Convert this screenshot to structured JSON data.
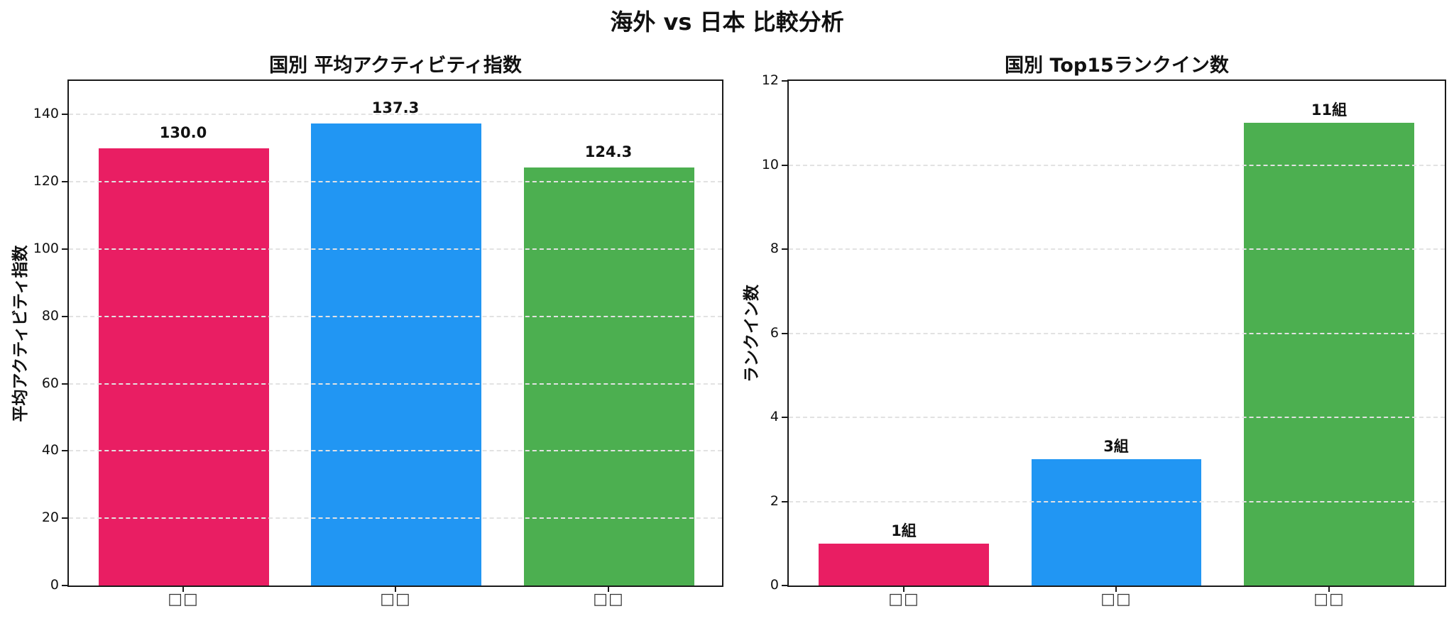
{
  "figure": {
    "suptitle": "海外 vs 日本 比較分析"
  },
  "left": {
    "title": "国別 平均アクティビティ指数",
    "ylabel": "平均アクティビティ指数",
    "yticks": [
      "0",
      "20",
      "40",
      "60",
      "80",
      "100",
      "120",
      "140"
    ],
    "xticks": [
      "□□",
      "□□",
      "□□"
    ],
    "bar_labels": [
      "130.0",
      "137.3",
      "124.3"
    ]
  },
  "right": {
    "title": "国別 Top15ランクイン数",
    "ylabel": "ランクイン数",
    "yticks": [
      "0",
      "2",
      "4",
      "6",
      "8",
      "10",
      "12"
    ],
    "xticks": [
      "□□",
      "□□",
      "□□"
    ],
    "bar_labels": [
      "1組",
      "3組",
      "11組"
    ]
  },
  "colors": {
    "series": [
      "#E91E63",
      "#2196F3",
      "#4CAF50"
    ],
    "grid": "#E2E2E2",
    "axis": "#1A1A1A"
  },
  "chart_data": [
    {
      "type": "bar",
      "title": "国別 平均アクティビティ指数",
      "categories": [
        "□□",
        "□□",
        "□□"
      ],
      "values": [
        130.0,
        137.3,
        124.3
      ],
      "data_labels": [
        "130.0",
        "137.3",
        "124.3"
      ],
      "bar_colors": [
        "#E91E63",
        "#2196F3",
        "#4CAF50"
      ],
      "xlabel": "",
      "ylabel": "平均アクティビティ指数",
      "ylim": [
        0,
        150
      ],
      "yticks": [
        0,
        20,
        40,
        60,
        80,
        100,
        120,
        140
      ],
      "grid": "y, dashed",
      "legend": null
    },
    {
      "type": "bar",
      "title": "国別 Top15ランクイン数",
      "categories": [
        "□□",
        "□□",
        "□□"
      ],
      "values": [
        1,
        3,
        11
      ],
      "data_labels": [
        "1組",
        "3組",
        "11組"
      ],
      "bar_colors": [
        "#E91E63",
        "#2196F3",
        "#4CAF50"
      ],
      "xlabel": "",
      "ylabel": "ランクイン数",
      "ylim": [
        0,
        12
      ],
      "yticks": [
        0,
        2,
        4,
        6,
        8,
        10,
        12
      ],
      "grid": "y, dashed",
      "legend": null
    }
  ]
}
